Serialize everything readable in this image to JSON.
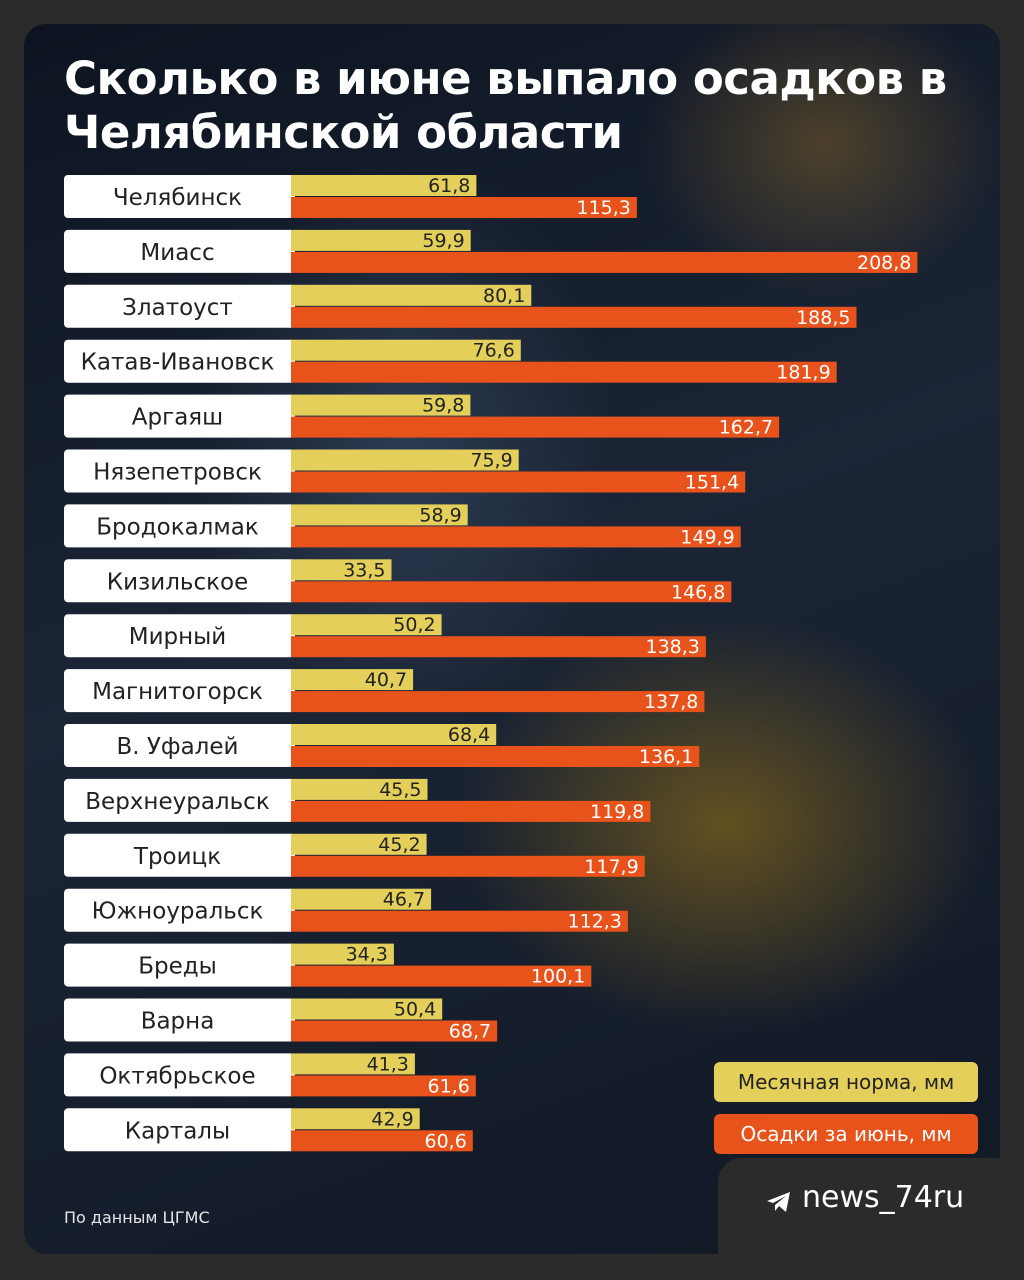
{
  "header": {
    "title": "Сколько в июне выпало осадков в Челябинской области"
  },
  "chart_data": {
    "type": "bar",
    "orientation": "horizontal",
    "title": "Сколько в июне выпало осадков в Челябинской области",
    "categories": [
      "Челябинск",
      "Миасс",
      "Златоуст",
      "Катав-Ивановск",
      "Аргаяш",
      "Нязепетровск",
      "Бродокалмак",
      "Кизильское",
      "Мирный",
      "Магнитогорск",
      "В. Уфалей",
      "Верхнеуральск",
      "Троицк",
      "Южноуральск",
      "Бреды",
      "Варна",
      "Октябрьское",
      "Карталы"
    ],
    "series": [
      {
        "name": "Месячная норма, мм",
        "color": "#e3cf5a",
        "values": [
          61.8,
          59.9,
          80.1,
          76.6,
          59.8,
          75.9,
          58.9,
          33.5,
          50.2,
          40.7,
          68.4,
          45.5,
          45.2,
          46.7,
          34.3,
          50.4,
          41.3,
          42.9
        ],
        "labels": [
          "61,8",
          "59,9",
          "80,1",
          "76,6",
          "59,8",
          "75,9",
          "58,9",
          "33,5",
          "50,2",
          "40,7",
          "68,4",
          "45,5",
          "45,2",
          "46,7",
          "34,3",
          "50,4",
          "41,3",
          "42,9"
        ]
      },
      {
        "name": "Осадки за июнь, мм",
        "color": "#e8531c",
        "values": [
          115.3,
          208.8,
          188.5,
          181.9,
          162.7,
          151.4,
          149.9,
          146.8,
          138.3,
          137.8,
          136.1,
          119.8,
          117.9,
          112.3,
          100.1,
          68.7,
          61.6,
          60.6
        ],
        "labels": [
          "115,3",
          "208,8",
          "188,5",
          "181,9",
          "162,7",
          "151,4",
          "149,9",
          "146,8",
          "138,3",
          "137,8",
          "136,1",
          "119,8",
          "117,9",
          "112,3",
          "100,1",
          "68,7",
          "61,6",
          "60,6"
        ]
      }
    ],
    "xlim": [
      0,
      208.8
    ],
    "grid": false,
    "legend_position": "bottom-right"
  },
  "legend": {
    "norm_label": "Месячная норма, мм",
    "fact_label": "Осадки за июнь, мм"
  },
  "footer": {
    "source": "По данным ЦГМС",
    "brand": "news_74ru"
  }
}
